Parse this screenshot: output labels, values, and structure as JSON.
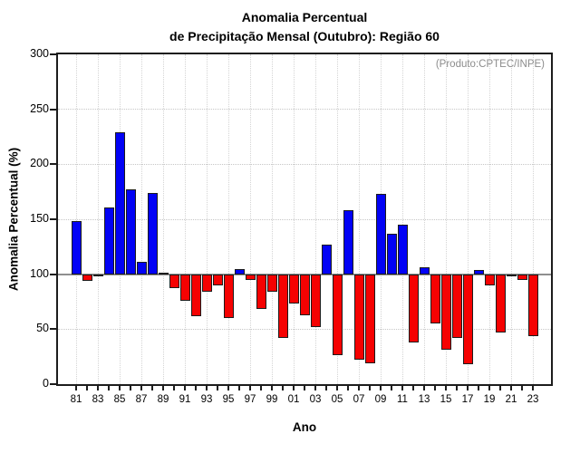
{
  "chart_data": {
    "type": "bar",
    "title_line1": "Anomalia Percentual",
    "title_line2": "de Precipitação Mensal (Outubro): Região 60",
    "annotation": "(Produto:CPTEC/INPE)",
    "xlabel": "Ano",
    "ylabel": "Anomalia Percentual (%)",
    "ylim": [
      0,
      300
    ],
    "yticks": [
      0,
      50,
      100,
      150,
      200,
      250,
      300
    ],
    "baseline": 100,
    "grid": "dotted",
    "x_label_every": 2,
    "categories": [
      "81",
      "82",
      "83",
      "84",
      "85",
      "86",
      "87",
      "88",
      "89",
      "90",
      "91",
      "92",
      "93",
      "94",
      "95",
      "96",
      "97",
      "98",
      "99",
      "00",
      "01",
      "02",
      "03",
      "04",
      "05",
      "06",
      "07",
      "08",
      "09",
      "10",
      "11",
      "12",
      "13",
      "14",
      "15",
      "16",
      "17",
      "18",
      "19",
      "20",
      "21",
      "22",
      "23"
    ],
    "values": [
      148,
      94,
      100,
      161,
      229,
      177,
      111,
      174,
      101,
      87,
      76,
      62,
      84,
      90,
      60,
      105,
      95,
      68,
      84,
      42,
      73,
      63,
      52,
      127,
      26,
      158,
      22,
      19,
      173,
      137,
      145,
      38,
      106,
      55,
      31,
      42,
      18,
      104,
      90,
      47,
      98,
      95,
      44
    ],
    "colors": {
      "above_baseline": "#0202f5",
      "below_baseline": "#f50202"
    }
  }
}
